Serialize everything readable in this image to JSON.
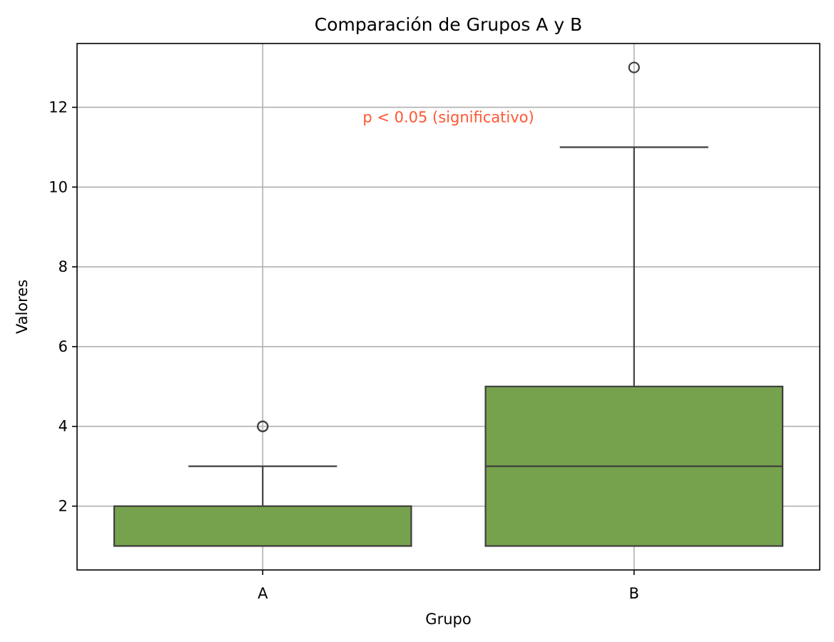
{
  "chart_data": {
    "type": "box",
    "title": "Comparación de Grupos A y B",
    "xlabel": "Grupo",
    "ylabel": "Valores",
    "categories": [
      "A",
      "B"
    ],
    "ylim": [
      0.4,
      13.6
    ],
    "yticks": [
      2,
      4,
      6,
      8,
      10,
      12
    ],
    "ytick_labels": [
      "2",
      "4",
      "6",
      "8",
      "10",
      "12"
    ],
    "grid": true,
    "box_color": "#77a24d",
    "line_color": "#3f3f3f",
    "grid_color": "#b0b0b0",
    "boxes": [
      {
        "category": "A",
        "whisker_low": 1,
        "q1": 1,
        "median": 1,
        "q3": 2,
        "whisker_high": 3,
        "outliers": [
          4,
          4
        ]
      },
      {
        "category": "B",
        "whisker_low": 1,
        "q1": 1,
        "median": 3,
        "q3": 5,
        "whisker_high": 11,
        "outliers": [
          13
        ]
      }
    ],
    "annotation": {
      "text": "p < 0.05 (significativo)",
      "x": 0.5,
      "y": 11.75,
      "color": "#ff5733"
    }
  }
}
